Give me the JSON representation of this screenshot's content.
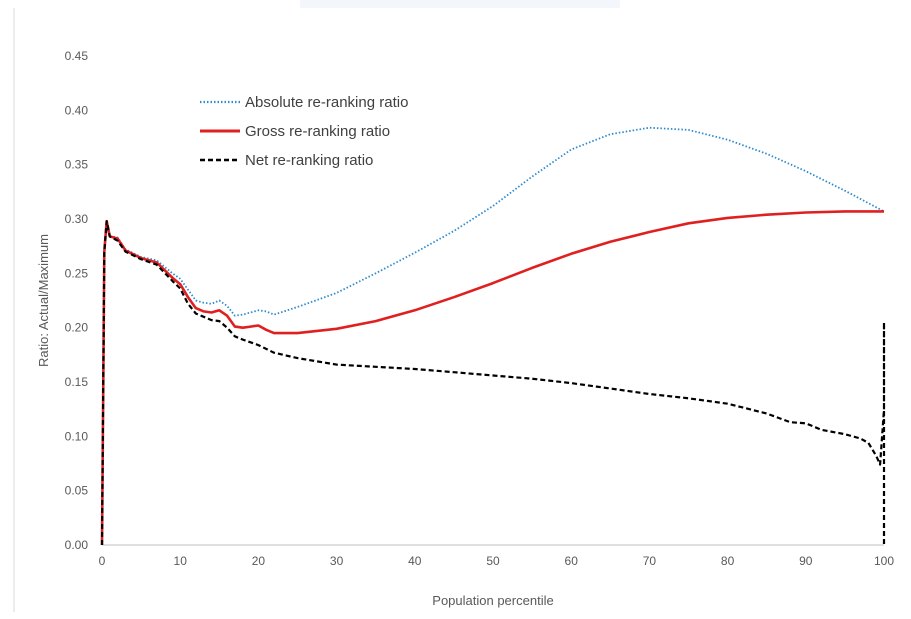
{
  "chart_data": {
    "type": "line",
    "title": "",
    "xlabel": "Population percentile",
    "ylabel": "Ratio: Actual/Maximum",
    "xlim": [
      0,
      100
    ],
    "ylim": [
      0,
      0.45
    ],
    "x_ticks": [
      "0",
      "10",
      "20",
      "30",
      "40",
      "50",
      "60",
      "70",
      "80",
      "90",
      "100"
    ],
    "y_ticks": [
      "0.00",
      "0.05",
      "0.10",
      "0.15",
      "0.20",
      "0.25",
      "0.30",
      "0.35",
      "0.40",
      "0.45"
    ],
    "grid": false,
    "legend_position": "top-left",
    "series": [
      {
        "name": "Absolute re-ranking ratio",
        "color": "#2e8bcf",
        "style": "dotted",
        "x": [
          0,
          0.3,
          0.6,
          1,
          2,
          3,
          5,
          7,
          9,
          10,
          11,
          12,
          13,
          14,
          15,
          16,
          17,
          18,
          19,
          20,
          21,
          22,
          25,
          30,
          35,
          40,
          45,
          50,
          55,
          60,
          65,
          70,
          75,
          80,
          85,
          90,
          95,
          100
        ],
        "y": [
          0.0,
          0.27,
          0.298,
          0.284,
          0.283,
          0.272,
          0.265,
          0.262,
          0.25,
          0.245,
          0.235,
          0.225,
          0.223,
          0.222,
          0.225,
          0.22,
          0.211,
          0.212,
          0.214,
          0.216,
          0.215,
          0.212,
          0.219,
          0.232,
          0.25,
          0.269,
          0.289,
          0.312,
          0.339,
          0.364,
          0.378,
          0.384,
          0.382,
          0.373,
          0.36,
          0.344,
          0.326,
          0.307
        ]
      },
      {
        "name": "Gross re-ranking ratio",
        "color": "#e02020",
        "style": "solid",
        "x": [
          0,
          0.3,
          0.6,
          1,
          2,
          3,
          5,
          7,
          9,
          10,
          11,
          12,
          13,
          14,
          15,
          16,
          17,
          18,
          19,
          20,
          21,
          22,
          25,
          30,
          35,
          40,
          45,
          50,
          55,
          60,
          65,
          70,
          75,
          80,
          85,
          90,
          95,
          100
        ],
        "y": [
          0.0,
          0.27,
          0.298,
          0.284,
          0.282,
          0.271,
          0.264,
          0.26,
          0.246,
          0.24,
          0.228,
          0.218,
          0.215,
          0.214,
          0.216,
          0.211,
          0.201,
          0.2,
          0.201,
          0.202,
          0.198,
          0.195,
          0.195,
          0.199,
          0.206,
          0.216,
          0.228,
          0.241,
          0.255,
          0.268,
          0.279,
          0.288,
          0.296,
          0.301,
          0.304,
          0.306,
          0.307,
          0.307
        ]
      },
      {
        "name": "Net re-ranking ratio",
        "color": "#000000",
        "style": "dashed",
        "x": [
          0,
          0.3,
          0.6,
          1,
          2,
          3,
          5,
          7,
          9,
          10,
          11,
          12,
          13,
          14,
          15,
          16,
          17,
          18,
          20,
          22,
          25,
          30,
          35,
          40,
          45,
          50,
          55,
          60,
          65,
          70,
          75,
          80,
          85,
          88,
          90,
          92,
          95,
          97,
          98,
          99,
          99.5,
          100,
          100,
          100
        ],
        "y": [
          0.0,
          0.27,
          0.298,
          0.284,
          0.28,
          0.27,
          0.263,
          0.258,
          0.243,
          0.236,
          0.222,
          0.213,
          0.21,
          0.207,
          0.206,
          0.2,
          0.192,
          0.189,
          0.184,
          0.177,
          0.172,
          0.166,
          0.164,
          0.162,
          0.159,
          0.156,
          0.153,
          0.149,
          0.144,
          0.139,
          0.135,
          0.13,
          0.121,
          0.113,
          0.112,
          0.106,
          0.102,
          0.098,
          0.094,
          0.082,
          0.074,
          0.125,
          0.205,
          0.0
        ]
      }
    ]
  }
}
